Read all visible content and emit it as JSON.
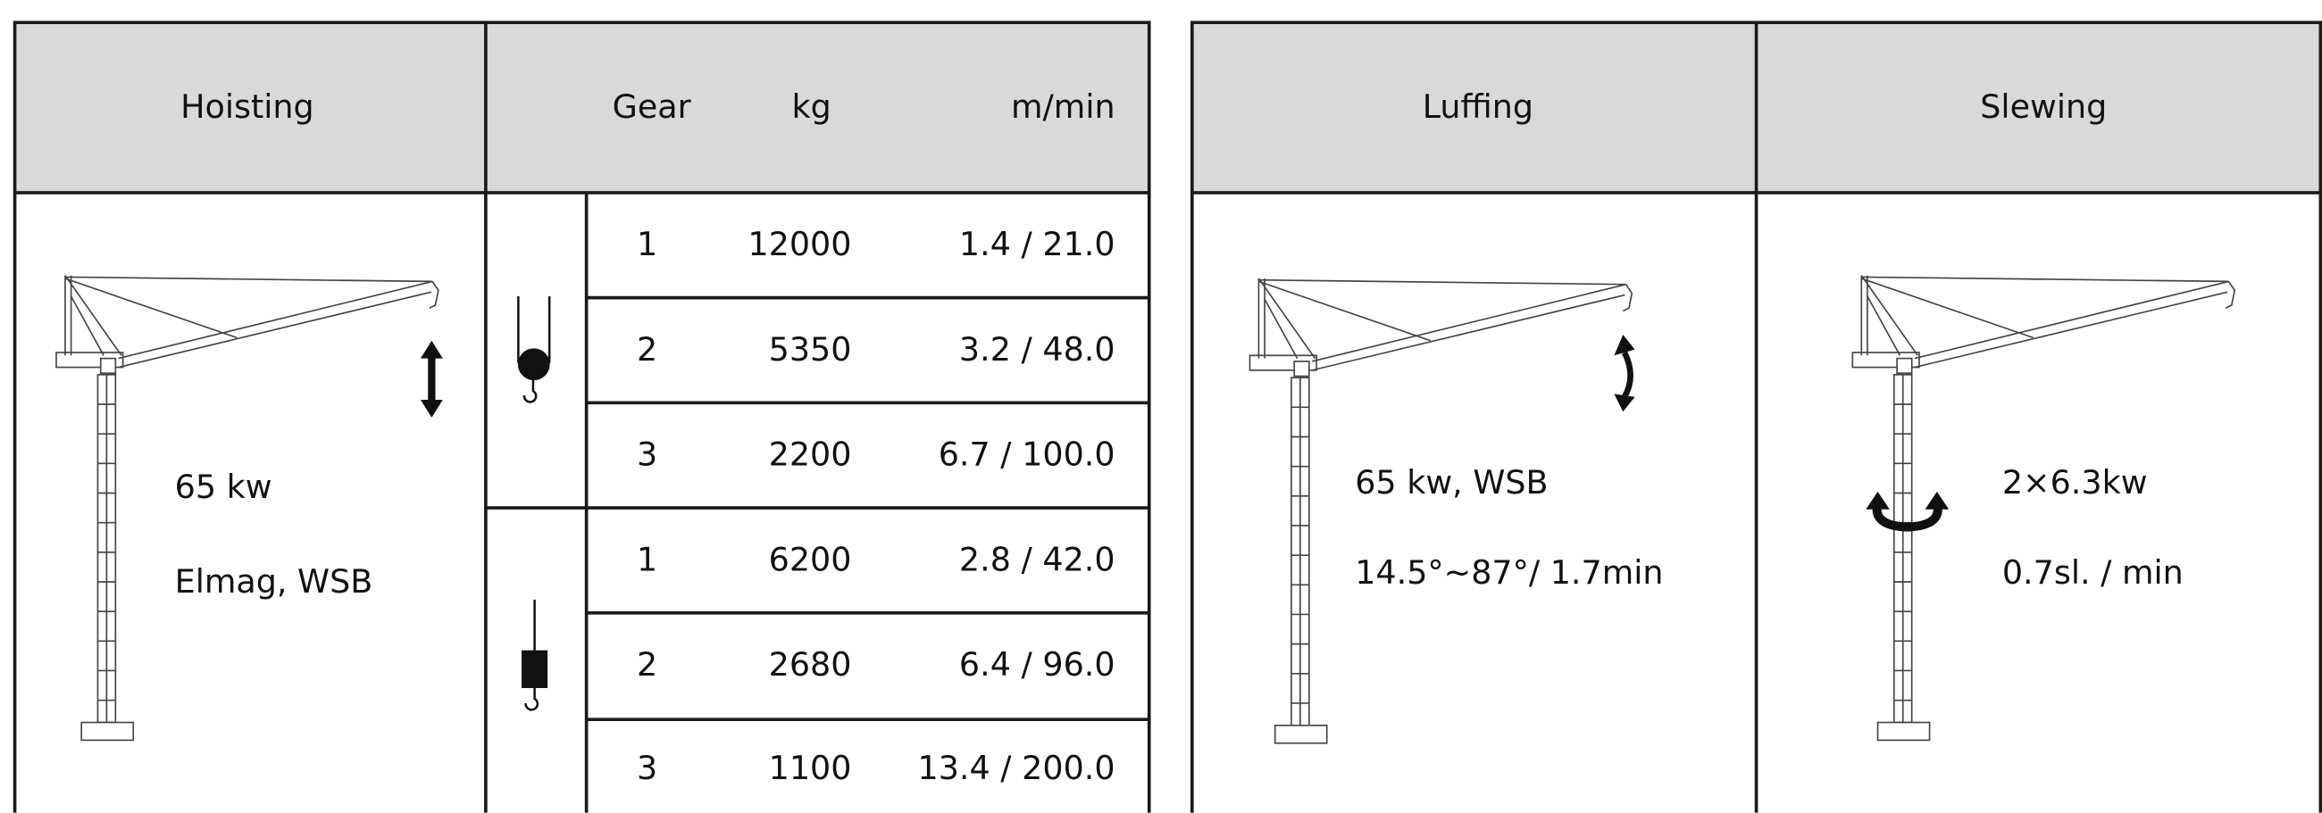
{
  "hoisting": {
    "header": "Hoisting",
    "power": "65 kw",
    "brake": "Elmag, WSB"
  },
  "gear_table": {
    "columns": [
      "Gear",
      "kg",
      "m/min"
    ],
    "groups": [
      {
        "rows": [
          [
            "1",
            "12000",
            "1.4 / 21.0"
          ],
          [
            "2",
            "5350",
            "3.2 / 48.0"
          ],
          [
            "3",
            "2200",
            "6.7 / 100.0"
          ]
        ]
      },
      {
        "rows": [
          [
            "1",
            "6200",
            "2.8 / 42.0"
          ],
          [
            "2",
            "2680",
            "6.4 / 96.0"
          ],
          [
            "3",
            "1100",
            "13.4 / 200.0"
          ]
        ]
      }
    ]
  },
  "luffing": {
    "header": "Luffing",
    "power": "65 kw, WSB",
    "range": "14.5°~87°/ 1.7min"
  },
  "slewing": {
    "header": "Slewing",
    "power": "2×6.3kw",
    "speed": "0.7sl. / min"
  }
}
